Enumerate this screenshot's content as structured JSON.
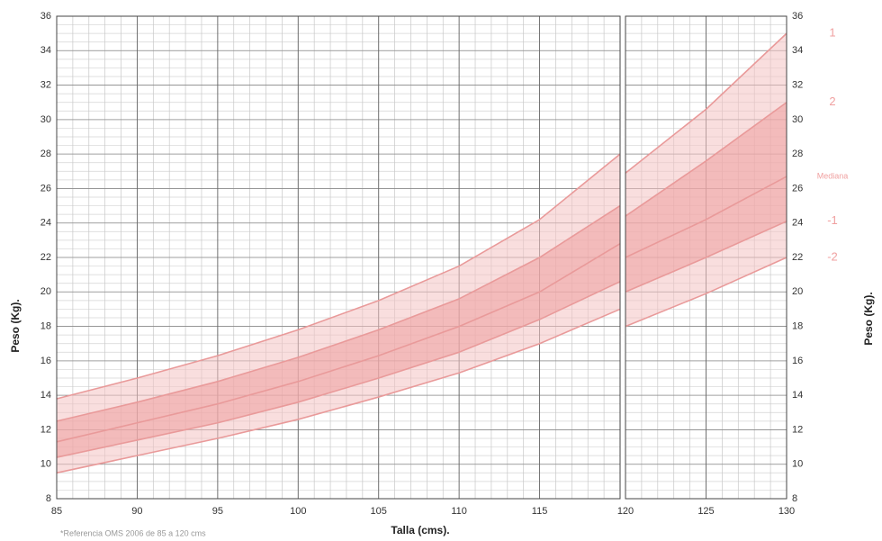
{
  "chart_data": [
    {
      "type": "line",
      "x_label": "Talla (cms).",
      "y_label": "Peso (Kg).",
      "note": "*Referencia      OMS    2006 de   85 a 120 cms",
      "x": [
        85,
        90,
        95,
        100,
        105,
        110,
        115,
        120
      ],
      "xlim": [
        85,
        120
      ],
      "xticks": [
        85,
        90,
        95,
        100,
        105,
        110,
        115
      ],
      "ylim": [
        8,
        36
      ],
      "yticks": [
        8,
        10,
        12,
        14,
        16,
        18,
        20,
        22,
        24,
        26,
        28,
        30,
        32,
        34,
        36
      ],
      "grid": true,
      "minor_grid": true,
      "series": [
        {
          "color": "#e99a9a",
          "values": [
            13.8,
            15.0,
            16.3,
            17.8,
            19.5,
            21.5,
            24.2,
            28.0
          ]
        },
        {
          "color": "#e99a9a",
          "values": [
            12.5,
            13.6,
            14.8,
            16.2,
            17.8,
            19.6,
            22.0,
            25.0
          ]
        },
        {
          "color": "#e99a9a",
          "values": [
            11.3,
            12.4,
            13.5,
            14.8,
            16.3,
            18.0,
            20.0,
            22.8
          ]
        },
        {
          "color": "#e99a9a",
          "values": [
            10.4,
            11.4,
            12.4,
            13.6,
            15.0,
            16.5,
            18.4,
            20.6
          ]
        },
        {
          "color": "#e99a9a",
          "values": [
            9.5,
            10.5,
            11.5,
            12.6,
            13.9,
            15.3,
            17.0,
            19.0
          ]
        }
      ]
    },
    {
      "type": "line",
      "y_label": "Peso (Kg).",
      "x": [
        120,
        125,
        130
      ],
      "xlim": [
        120,
        130
      ],
      "xticks": [
        120,
        125,
        130
      ],
      "ylim": [
        8,
        36
      ],
      "yticks": [
        8,
        10,
        12,
        14,
        16,
        18,
        20,
        22,
        24,
        26,
        28,
        30,
        32,
        34,
        36
      ],
      "grid": true,
      "minor_grid": true,
      "series": [
        {
          "name": "1",
          "color": "#e99a9a",
          "values": [
            26.9,
            30.6,
            35.0
          ]
        },
        {
          "name": "2",
          "color": "#e99a9a",
          "values": [
            24.4,
            27.6,
            31.0
          ]
        },
        {
          "name": "Mediana",
          "color": "#e99a9a",
          "values": [
            22.0,
            24.2,
            26.7
          ]
        },
        {
          "name": "-1",
          "color": "#e99a9a",
          "values": [
            20.0,
            22.0,
            24.1
          ]
        },
        {
          "name": "-2",
          "color": "#e99a9a",
          "values": [
            18.0,
            19.9,
            22.0
          ]
        }
      ]
    }
  ]
}
